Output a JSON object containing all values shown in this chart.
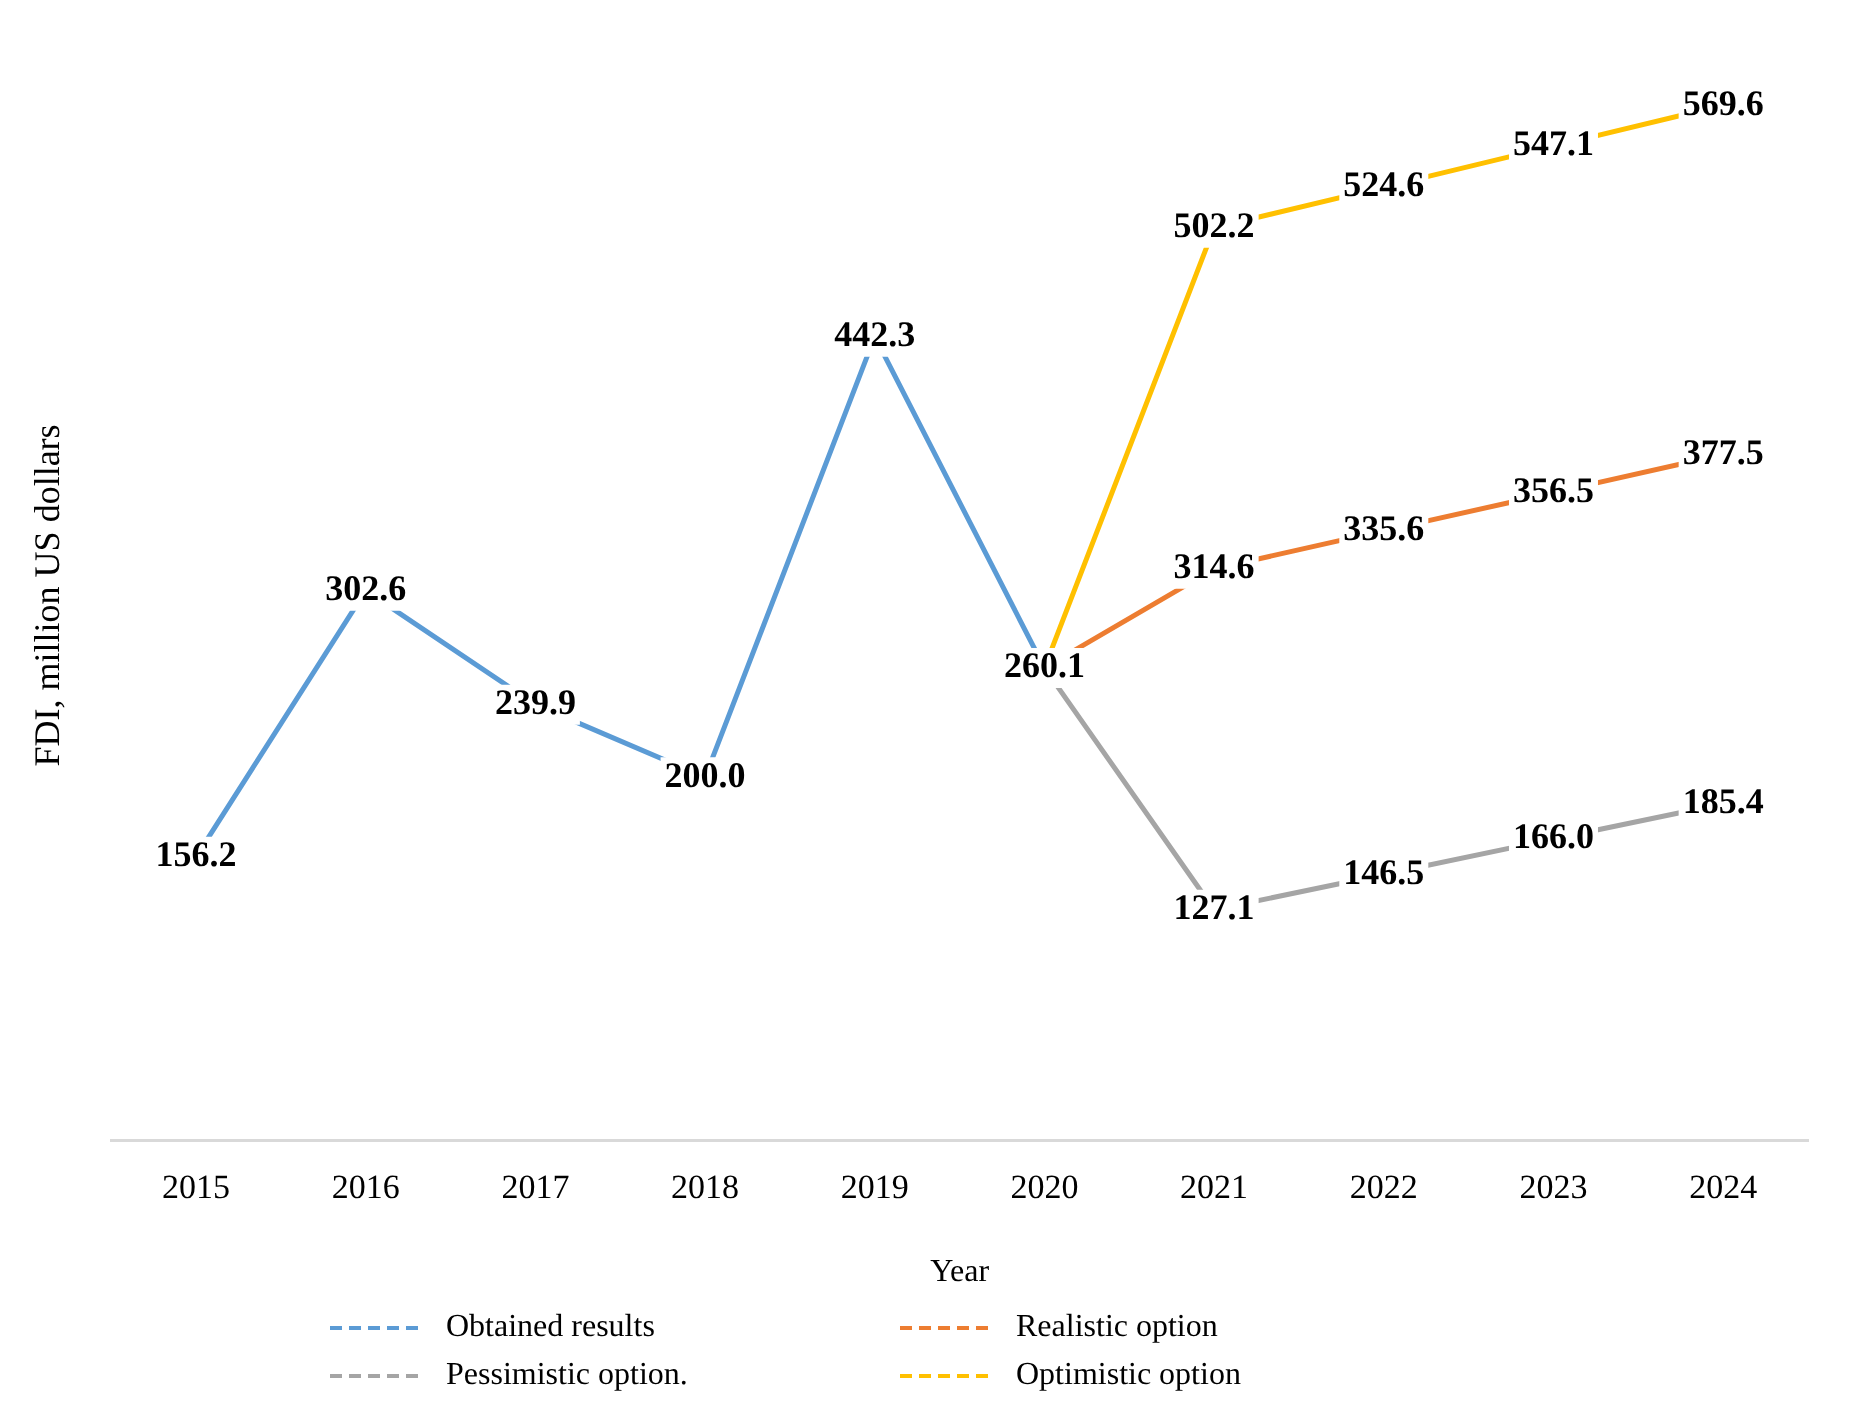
{
  "chart_data": {
    "type": "line",
    "xlabel": "Year",
    "ylabel": "FDI, million US dollars",
    "categories": [
      "2015",
      "2016",
      "2017",
      "2018",
      "2019",
      "2020",
      "2021",
      "2022",
      "2023",
      "2024"
    ],
    "tick_labels": "x",
    "grid": false,
    "line_style": "solid",
    "legend": "bottom",
    "series": [
      {
        "name": "Obtained results",
        "color": "#5b9bd5",
        "values": [
          156.2,
          302.6,
          239.9,
          200.0,
          442.3,
          260.1,
          null,
          null,
          null,
          null
        ],
        "value_labels": [
          "156.2",
          "302.6",
          "239.9",
          "200.0",
          "442.3",
          "260.1",
          null,
          null,
          null,
          null
        ]
      },
      {
        "name": "Realistic option",
        "color": "#ed7d31",
        "values": [
          null,
          null,
          null,
          null,
          null,
          260.1,
          314.6,
          335.6,
          356.5,
          377.5
        ],
        "value_labels": [
          null,
          null,
          null,
          null,
          null,
          null,
          "314.6",
          "335.6",
          "356.5",
          "377.5"
        ]
      },
      {
        "name": "Pessimistic option.",
        "color": "#a5a5a5",
        "values": [
          null,
          null,
          null,
          null,
          null,
          260.1,
          127.1,
          146.5,
          166.0,
          185.4
        ],
        "value_labels": [
          null,
          null,
          null,
          null,
          null,
          null,
          "127.1",
          "146.5",
          "166.0",
          "185.4"
        ]
      },
      {
        "name": "Optimistic option",
        "color": "#ffc000",
        "values": [
          null,
          null,
          null,
          null,
          null,
          260.1,
          502.2,
          524.6,
          547.1,
          569.6
        ],
        "value_labels": [
          null,
          null,
          null,
          null,
          null,
          null,
          "502.2",
          "524.6",
          "547.1",
          "569.6"
        ]
      }
    ]
  }
}
